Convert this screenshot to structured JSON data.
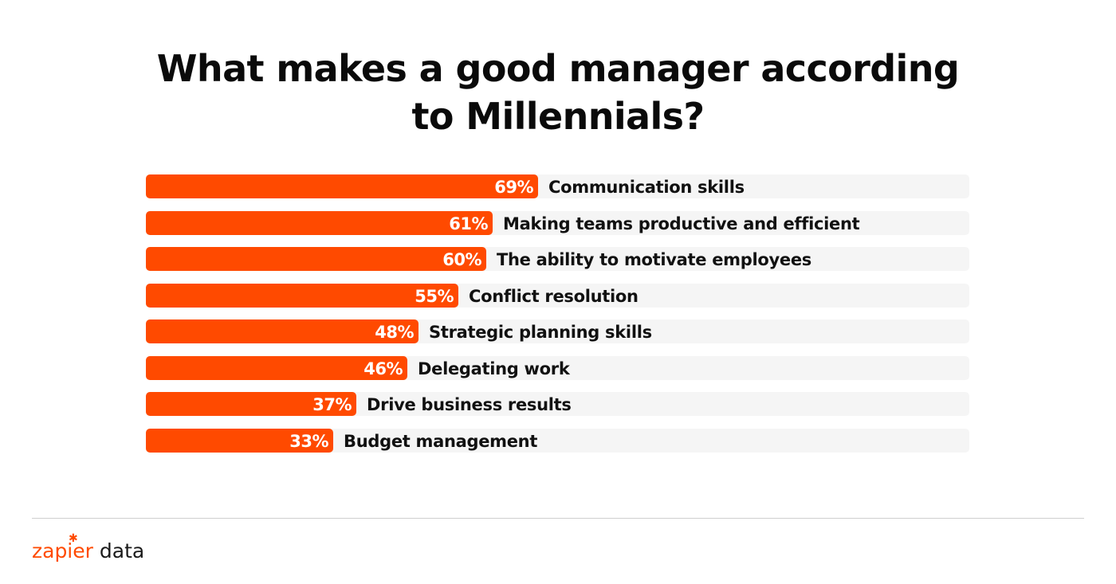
{
  "title_line1": "What makes a good manager according",
  "title_line2": "to Millennials?",
  "colors": {
    "bar": "#ff4a00",
    "track": "#f5f5f5",
    "brand": "#ff4a00"
  },
  "brand": {
    "name": "zapier",
    "suffix": "data",
    "icon": "asterisk-icon"
  },
  "chart_data": {
    "type": "bar",
    "orientation": "horizontal",
    "categories": [
      "Communication skills",
      "Making teams productive and efficient",
      "The ability to motivate employees",
      "Conflict resolution",
      "Strategic planning skills",
      "Delegating work",
      "Drive business results",
      "Budget management"
    ],
    "values": [
      69,
      61,
      60,
      55,
      48,
      46,
      37,
      33
    ],
    "value_labels": [
      "69%",
      "61%",
      "60%",
      "55%",
      "48%",
      "46%",
      "37%",
      "33%"
    ],
    "title": "What makes a good manager according to Millennials?",
    "xlim": [
      0,
      145
    ],
    "grid": false,
    "legend": "none"
  }
}
